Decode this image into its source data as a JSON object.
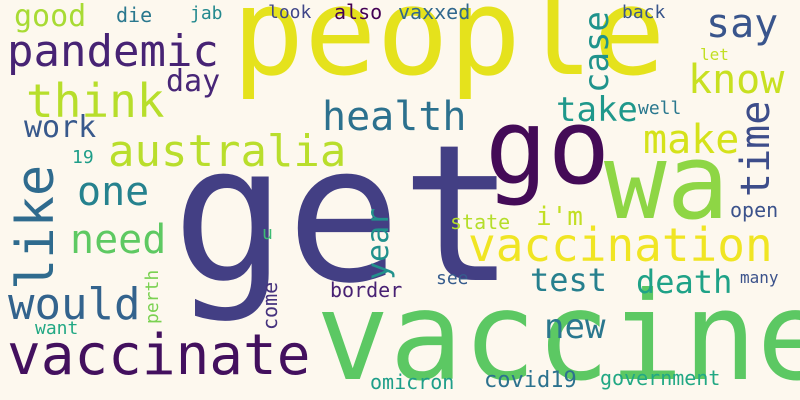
{
  "words": {
    "get": {
      "text": "get",
      "color": "#433f84"
    },
    "people": {
      "text": "people",
      "color": "#e5e21c"
    },
    "vaccine": {
      "text": "vaccine",
      "color": "#5cc863"
    },
    "wa": {
      "text": "wa",
      "color": "#8ed645"
    },
    "go": {
      "text": "go",
      "color": "#440b57"
    },
    "vaccinate": {
      "text": "vaccinate",
      "color": "#43105e"
    },
    "vaccination": {
      "text": "vaccination",
      "color": "#f0e523"
    },
    "pandemic": {
      "text": "pandemic",
      "color": "#472374"
    },
    "australia": {
      "text": "australia",
      "color": "#b9de2c"
    },
    "like": {
      "text": "like",
      "color": "#2f6b8e"
    },
    "think": {
      "text": "think",
      "color": "#b7de2b"
    },
    "health": {
      "text": "health",
      "color": "#2c718e"
    },
    "would": {
      "text": "would",
      "color": "#33638d"
    },
    "need": {
      "text": "need",
      "color": "#5ec962"
    },
    "one": {
      "text": "one",
      "color": "#26828e"
    },
    "know": {
      "text": "know",
      "color": "#c8e020"
    },
    "say": {
      "text": "say",
      "color": "#39558c"
    },
    "time": {
      "text": "time",
      "color": "#3d4d8a"
    },
    "make": {
      "text": "make",
      "color": "#d5e21a"
    },
    "case": {
      "text": "case",
      "color": "#20938c"
    },
    "take": {
      "text": "take",
      "color": "#1f988b"
    },
    "death": {
      "text": "death",
      "color": "#1fa287"
    },
    "test": {
      "text": "test",
      "color": "#27808e"
    },
    "new": {
      "text": "new",
      "color": "#2a778e"
    },
    "year": {
      "text": "year",
      "color": "#21918c"
    },
    "day": {
      "text": "day",
      "color": "#482677"
    },
    "work": {
      "text": "work",
      "color": "#38598c"
    },
    "good": {
      "text": "good",
      "color": "#a8db34"
    },
    "die": {
      "text": "die",
      "color": "#2a788e"
    },
    "jab": {
      "text": "jab",
      "color": "#23898e"
    },
    "look": {
      "text": "look",
      "color": "#404688"
    },
    "also": {
      "text": "also",
      "color": "#440154"
    },
    "vaxxed": {
      "text": "vaxxed",
      "color": "#31688e"
    },
    "back": {
      "text": "back",
      "color": "#39568c"
    },
    "let": {
      "text": "let",
      "color": "#c2df23"
    },
    "well": {
      "text": "well",
      "color": "#2a788e"
    },
    "i_m": {
      "text": "i'm",
      "color": "#c2df23"
    },
    "state": {
      "text": "state",
      "color": "#b5de2b"
    },
    "open": {
      "text": "open",
      "color": "#3b528b"
    },
    "many": {
      "text": "many",
      "color": "#3b528b"
    },
    "nineteen": {
      "text": "19",
      "color": "#1f9e89"
    },
    "u": {
      "text": "u",
      "color": "#3dbc74"
    },
    "come": {
      "text": "come",
      "color": "#46337e"
    },
    "border": {
      "text": "border",
      "color": "#482173"
    },
    "see": {
      "text": "see",
      "color": "#365c8d"
    },
    "perth": {
      "text": "perth",
      "color": "#7ad151"
    },
    "want": {
      "text": "want",
      "color": "#22a884"
    },
    "omicron": {
      "text": "omicron",
      "color": "#1f9e89"
    },
    "covid19": {
      "text": "covid19",
      "color": "#2c728e"
    },
    "government": {
      "text": "government",
      "color": "#22a884"
    }
  }
}
